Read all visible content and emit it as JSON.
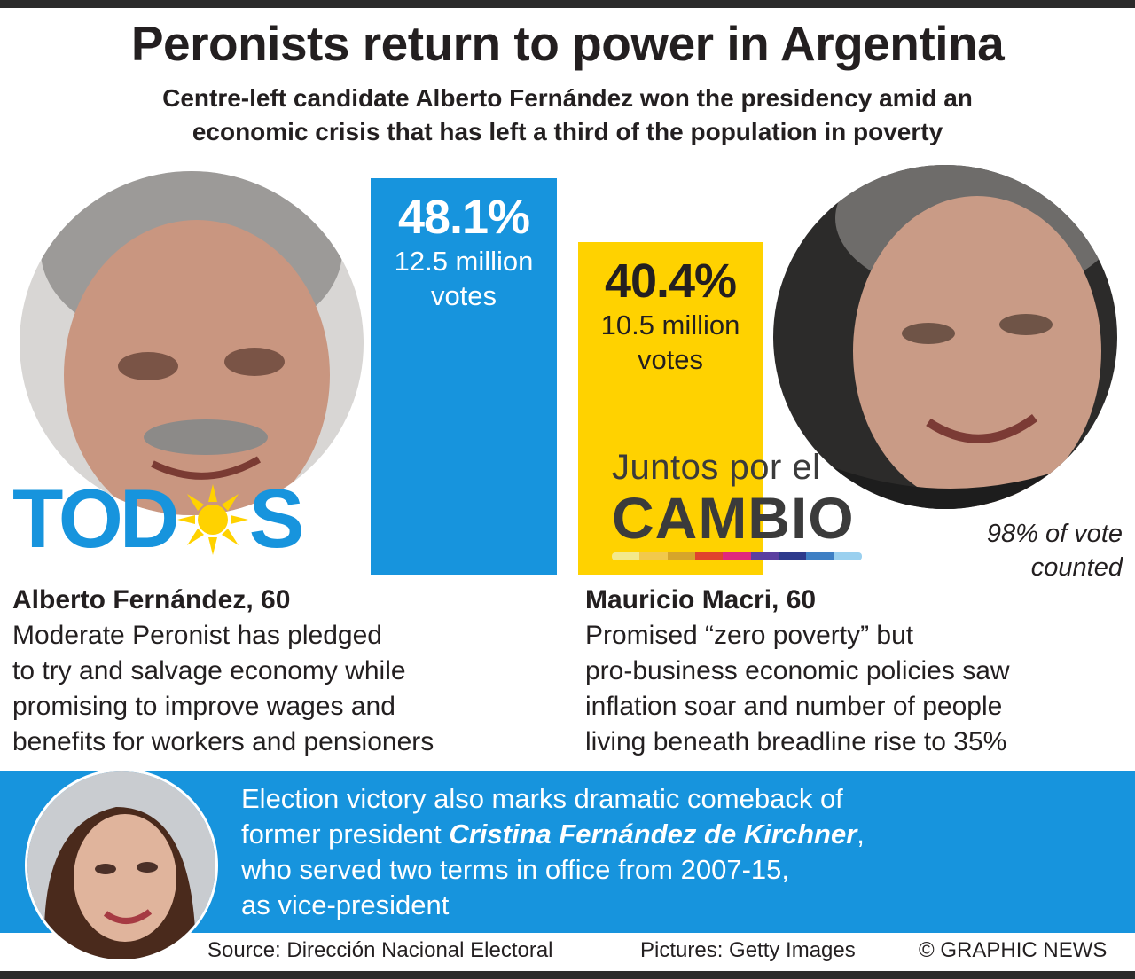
{
  "title": "Peronists return to power in Argentina",
  "subtitle_line1": "Centre-left candidate Alberto Fernández won the presidency amid an",
  "subtitle_line2": "economic crisis that has left a third of the population in poverty",
  "chart_data": {
    "type": "bar",
    "categories": [
      "Alberto Fernández",
      "Mauricio Macri"
    ],
    "values": [
      48.1,
      40.4
    ],
    "ylim": [
      0,
      50
    ],
    "value_labels": [
      "48.1%",
      "40.4%"
    ],
    "vote_labels": [
      [
        "12.5 million",
        "votes"
      ],
      [
        "10.5 million",
        "votes"
      ]
    ],
    "colors": [
      "#1794dd",
      "#ffd200"
    ]
  },
  "parties": {
    "left_logo_a": "TOD",
    "left_logo_b": "S",
    "right_logo_line1": "Juntos por el",
    "right_logo_line2": "CAMBIO",
    "stripe_colors": [
      "#f3e98c",
      "#f2c94c",
      "#d6a52a",
      "#e0432d",
      "#e0287d",
      "#5b3fa0",
      "#2d3a8c",
      "#3e7fc4",
      "#9ad0ef"
    ]
  },
  "counted": [
    "98% of vote",
    "counted"
  ],
  "candidates": {
    "left": {
      "name": "Alberto Fernández, 60",
      "desc": [
        "Moderate Peronist has pledged",
        "to try and salvage economy while",
        "promising to improve wages and",
        "benefits for workers and pensioners"
      ]
    },
    "right": {
      "name": "Mauricio Macri, 60",
      "desc": [
        "Promised “zero poverty” but",
        "pro-business economic policies saw",
        "inflation soar and number of people",
        "living beneath breadline rise to 35%"
      ]
    }
  },
  "band": {
    "line1": "Election victory also marks dramatic comeback of",
    "line2_pre": "former president ",
    "line2_em": "Cristina Fernández de Kirchner",
    "line2_post": ",",
    "line3": "who served two terms in office from 2007-15,",
    "line4": "as vice-president"
  },
  "footer": {
    "source": "Source: Dirección Nacional Electoral",
    "pictures": "Pictures: Getty Images",
    "copyright": "© GRAPHIC NEWS"
  }
}
